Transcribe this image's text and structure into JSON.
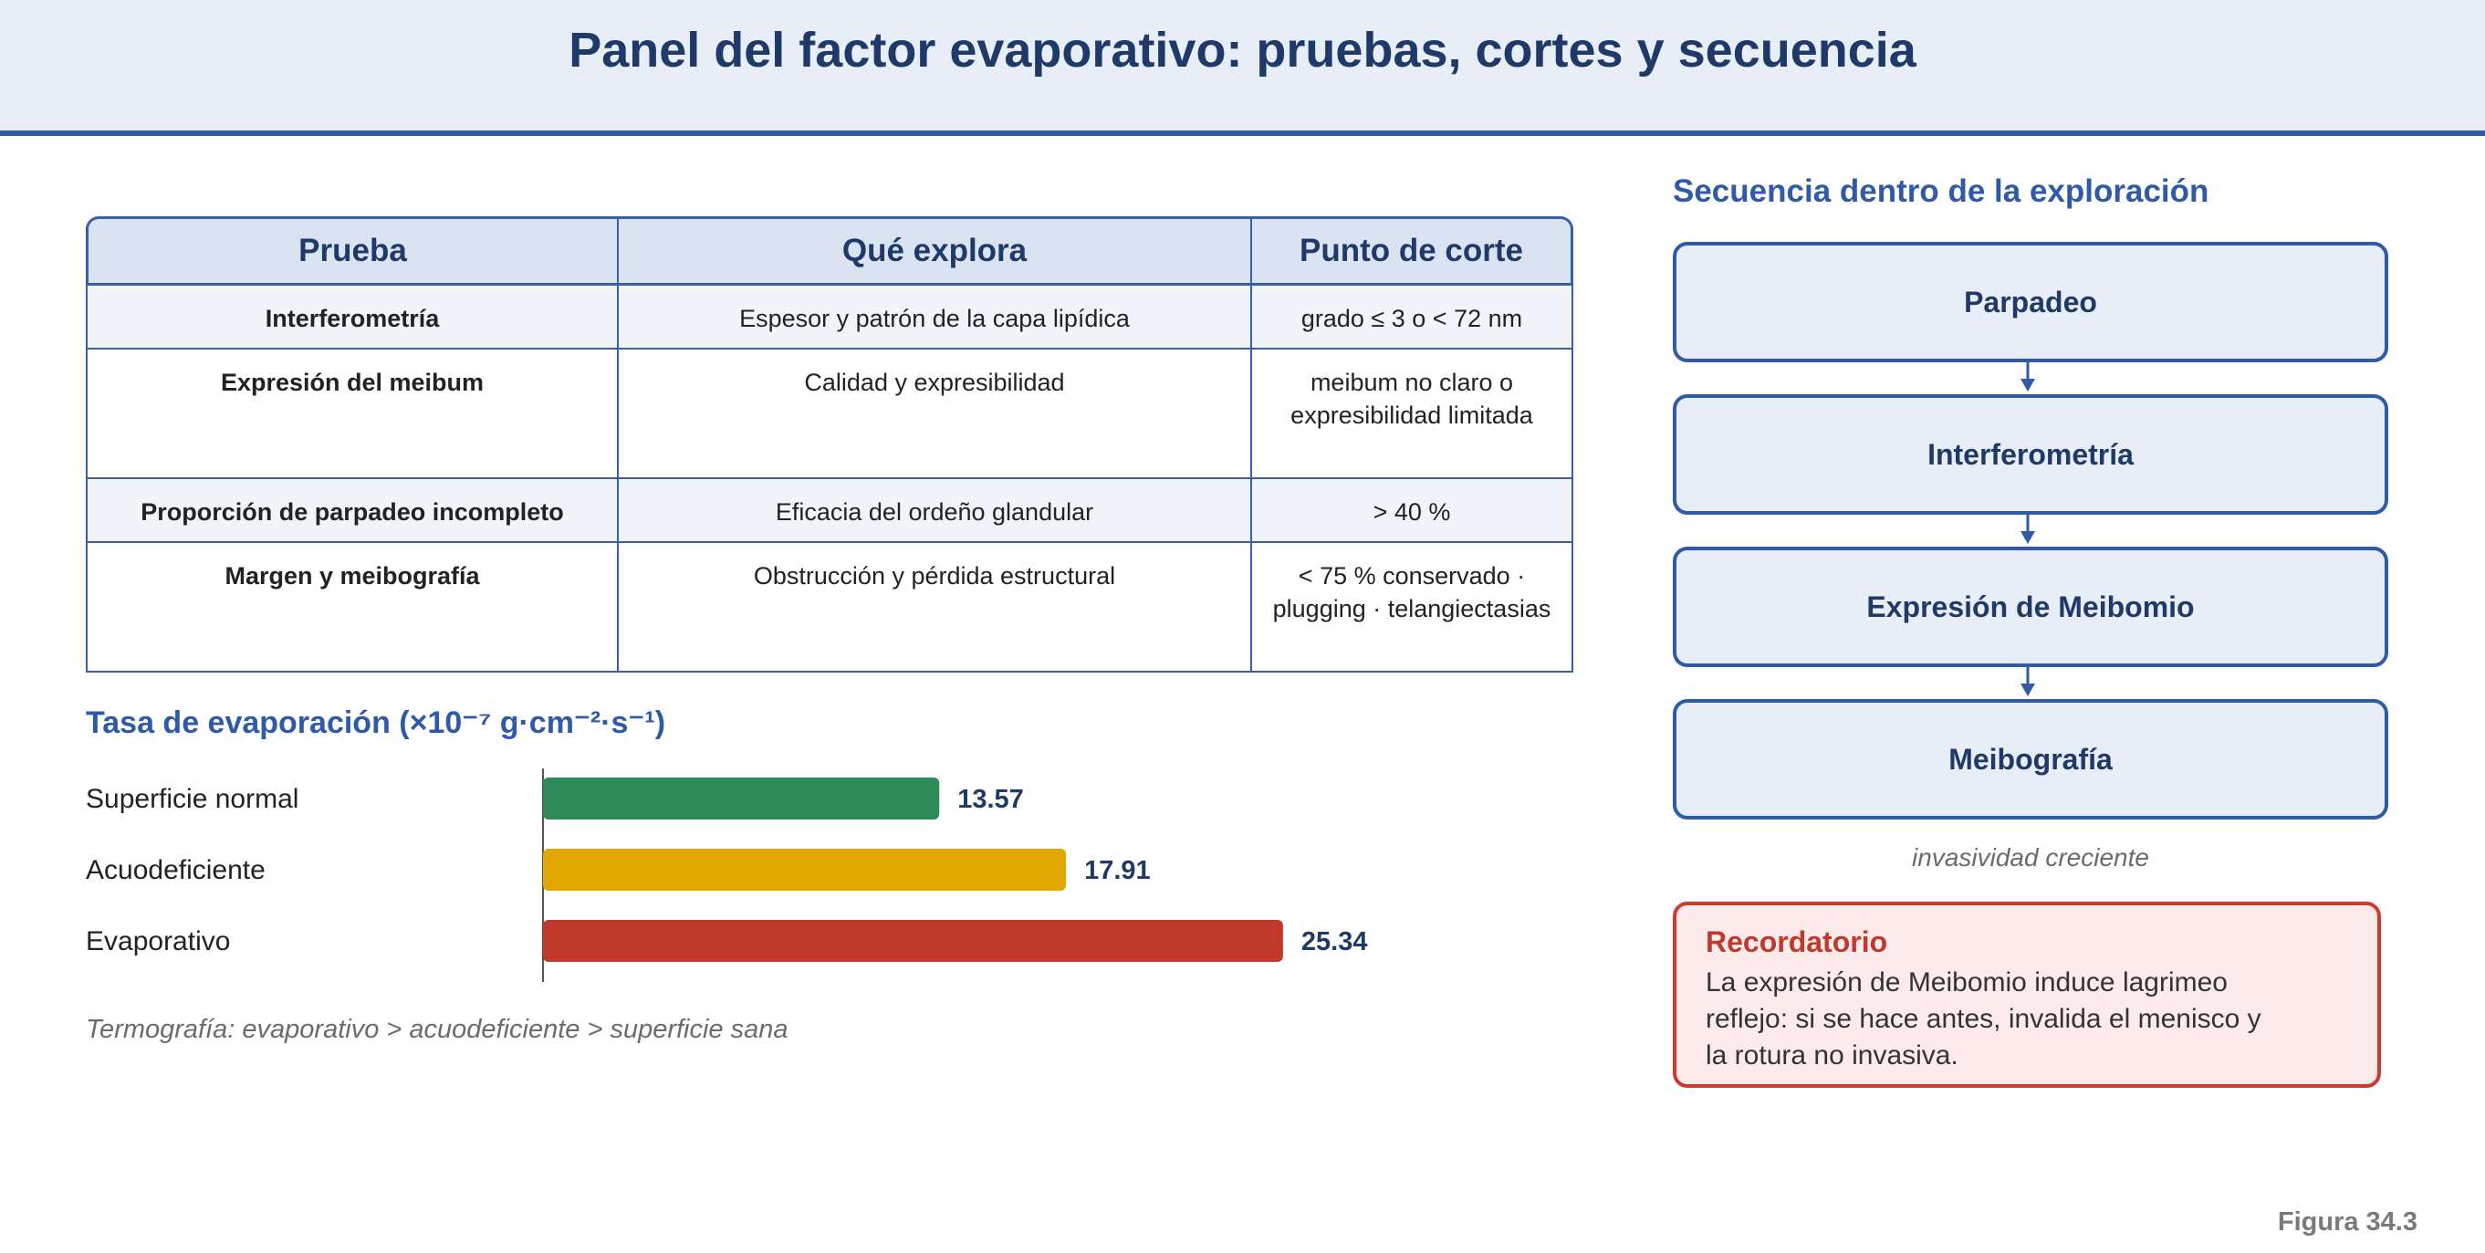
{
  "header": {
    "title": "Panel del factor evaporativo: pruebas, cortes y secuencia"
  },
  "table": {
    "headers": [
      "Prueba",
      "Qué explora",
      "Punto de corte"
    ],
    "rows": [
      {
        "test": "Interferometría",
        "explores": "Espesor y patrón de la capa lipídica",
        "cutoff": "grado ≤ 3 o < 72 nm"
      },
      {
        "test": "Expresión del meibum",
        "explores": "Calidad y expresibilidad",
        "cutoff": "meibum no claro o expresibilidad limitada"
      },
      {
        "test": "Proporción de parpadeo incompleto",
        "explores": "Eficacia del ordeño glandular",
        "cutoff": "> 40 %"
      },
      {
        "test": "Margen y meibografía",
        "explores": "Obstrucción y pérdida estructural",
        "cutoff": "< 75 % conservado · plugging · telangiectasias"
      }
    ]
  },
  "chart_data": {
    "type": "bar",
    "orientation": "horizontal",
    "title": "Tasa de evaporación (×10⁻⁷ g·cm⁻²·s⁻¹)",
    "categories": [
      "Superficie normal",
      "Acuodeficiente",
      "Evaporativo"
    ],
    "values": [
      13.57,
      17.91,
      25.34
    ],
    "value_labels": [
      "13.57",
      "17.91",
      "25.34"
    ],
    "colors": [
      "#2e8b57",
      "#e0a800",
      "#c0392b"
    ],
    "xlim": [
      0,
      30
    ],
    "grid": false,
    "legend": "none",
    "note": "Termografía: evaporativo > acuodeficiente > superficie sana"
  },
  "sequence": {
    "title": "Secuencia dentro de la exploración",
    "steps": [
      "Parpadeo",
      "Interferometría",
      "Expresión de Meibomio",
      "Meibografía"
    ],
    "caption": "invasividad creciente"
  },
  "reminder": {
    "title": "Recordatorio",
    "text": "La expresión de Meibomio induce lagrimeo reflejo: si se hace antes, invalida el menisco y la rotura no invasiva."
  },
  "figure_label": "Figura 34.3",
  "colors": {
    "accent": "#2f5aa8",
    "dark_blue": "#1f3968",
    "alert": "#c0392b"
  }
}
